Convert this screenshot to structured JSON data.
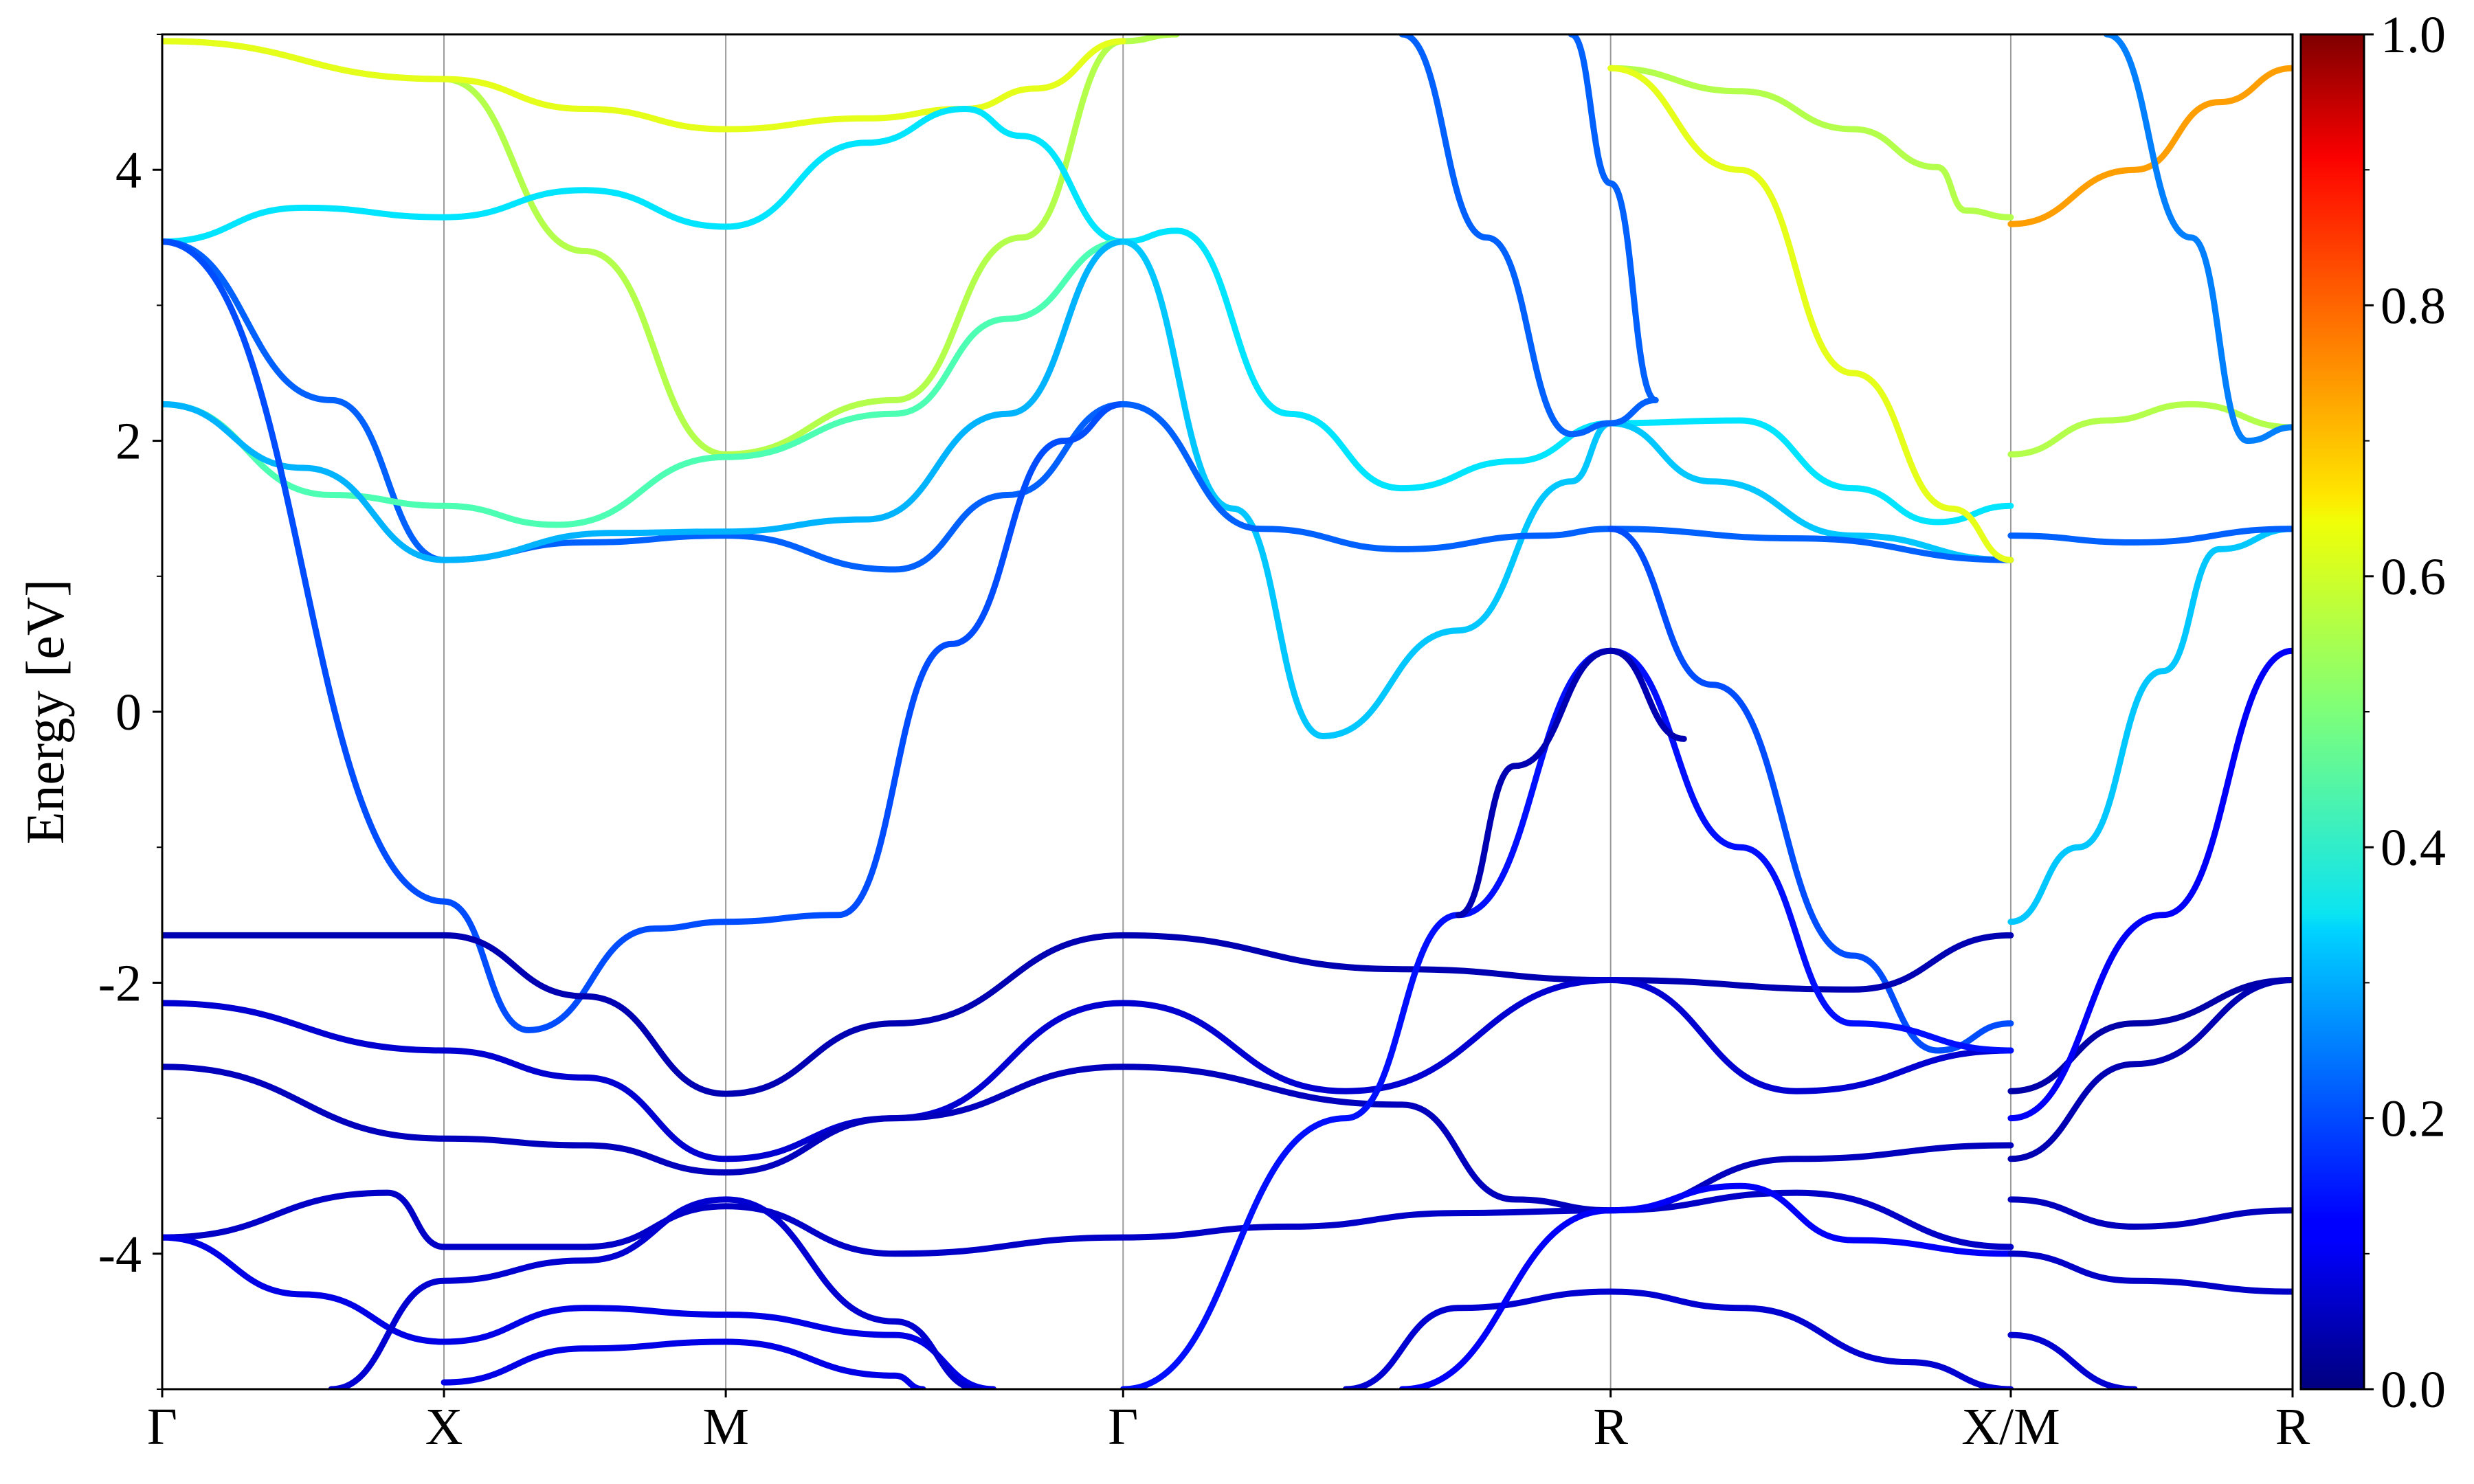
{
  "chart_data": {
    "type": "line",
    "ylabel": "Energy [eV]",
    "ylim": [
      -5,
      5
    ],
    "xlim": [
      0,
      7.56
    ],
    "y_ticks": [
      -4,
      -2,
      0,
      2,
      4
    ],
    "y_tick_labels": [
      "-4",
      "-2",
      "0",
      "2",
      "4"
    ],
    "k_points": [
      {
        "label": "Γ",
        "x": 0.0
      },
      {
        "label": "X",
        "x": 1.0
      },
      {
        "label": "M",
        "x": 2.0
      },
      {
        "label": "Γ",
        "x": 3.41
      },
      {
        "label": "R",
        "x": 5.14
      },
      {
        "label": "X/M",
        "x": 6.56
      },
      {
        "label": "R",
        "x": 7.56
      }
    ],
    "colorbar": {
      "colormap": "jet",
      "range": [
        0,
        1
      ],
      "tick_labels": [
        "0.0",
        "0.2",
        "0.4",
        "0.6",
        "0.8",
        "1.0"
      ],
      "ticks": [
        0,
        0.2,
        0.4,
        0.6,
        0.8,
        1.0
      ]
    },
    "series": [
      {
        "weight": 0.55,
        "points": [
          [
            0,
            4.95
          ],
          [
            1,
            4.67
          ],
          [
            1.5,
            3.4
          ],
          [
            2,
            1.9
          ],
          [
            2.6,
            2.3
          ],
          [
            3.05,
            3.5
          ],
          [
            3.41,
            4.95
          ],
          [
            3.6,
            5.0
          ]
        ]
      },
      {
        "weight": 0.6,
        "points": [
          [
            0,
            4.95
          ],
          [
            1,
            4.67
          ],
          [
            1.5,
            4.45
          ],
          [
            2,
            4.3
          ],
          [
            2.5,
            4.38
          ],
          [
            2.85,
            4.45
          ],
          [
            3.1,
            4.6
          ],
          [
            3.41,
            4.95
          ]
        ]
      },
      {
        "weight": 0.35,
        "points": [
          [
            0,
            3.47
          ],
          [
            0.5,
            3.72
          ],
          [
            1,
            3.65
          ],
          [
            1.5,
            3.85
          ],
          [
            2,
            3.58
          ],
          [
            2.5,
            4.2
          ],
          [
            2.85,
            4.45
          ],
          [
            3.05,
            4.25
          ],
          [
            3.41,
            3.47
          ]
        ]
      },
      {
        "weight": 0.22,
        "points": [
          [
            0,
            3.47
          ],
          [
            0.6,
            2.3
          ],
          [
            1,
            1.12
          ],
          [
            1.5,
            1.25
          ],
          [
            2,
            1.3
          ],
          [
            2.6,
            1.05
          ],
          [
            3.0,
            1.6
          ],
          [
            3.41,
            2.27
          ]
        ]
      },
      {
        "weight": 0.45,
        "points": [
          [
            0,
            2.27
          ],
          [
            0.6,
            1.6
          ],
          [
            1,
            1.52
          ],
          [
            1.4,
            1.38
          ],
          [
            2,
            1.88
          ],
          [
            2.6,
            2.2
          ],
          [
            3.0,
            2.9
          ],
          [
            3.41,
            3.47
          ]
        ]
      },
      {
        "weight": 0.3,
        "points": [
          [
            0,
            2.27
          ],
          [
            0.5,
            1.8
          ],
          [
            1,
            1.12
          ],
          [
            1.6,
            1.32
          ],
          [
            2,
            1.33
          ],
          [
            2.5,
            1.42
          ],
          [
            3.0,
            2.2
          ],
          [
            3.41,
            3.47
          ]
        ]
      },
      {
        "weight": 0.2,
        "points": [
          [
            0,
            3.47
          ],
          [
            1,
            -1.4
          ],
          [
            1.3,
            -2.35
          ],
          [
            1.75,
            -1.6
          ],
          [
            2,
            -1.55
          ],
          [
            2.4,
            -1.5
          ],
          [
            2.8,
            0.5
          ],
          [
            3.2,
            2.0
          ],
          [
            3.41,
            2.27
          ]
        ]
      },
      {
        "weight": 0.35,
        "points": [
          [
            3.41,
            3.47
          ],
          [
            3.6,
            3.55
          ],
          [
            4.0,
            2.2
          ],
          [
            4.4,
            1.65
          ],
          [
            4.8,
            1.85
          ],
          [
            5.14,
            2.13
          ],
          [
            5.6,
            2.15
          ],
          [
            6.0,
            1.65
          ],
          [
            6.3,
            1.4
          ],
          [
            6.56,
            1.52
          ]
        ]
      },
      {
        "weight": 0.32,
        "points": [
          [
            3.41,
            3.47
          ],
          [
            3.8,
            1.5
          ],
          [
            4.12,
            -0.18
          ],
          [
            4.6,
            0.6
          ],
          [
            5.0,
            1.7
          ],
          [
            5.14,
            2.13
          ],
          [
            5.5,
            1.7
          ],
          [
            6.0,
            1.3
          ],
          [
            6.56,
            1.12
          ]
        ]
      },
      {
        "weight": 0.22,
        "points": [
          [
            3.41,
            2.27
          ],
          [
            3.9,
            1.35
          ],
          [
            4.4,
            1.2
          ],
          [
            4.9,
            1.3
          ],
          [
            5.14,
            1.35
          ],
          [
            5.8,
            1.28
          ],
          [
            6.56,
            1.12
          ]
        ]
      },
      {
        "weight": 0.55,
        "points": [
          [
            5.14,
            4.75
          ],
          [
            5.6,
            4.58
          ],
          [
            6.0,
            4.3
          ],
          [
            6.3,
            4.02
          ],
          [
            6.4,
            3.7
          ],
          [
            6.56,
            3.65
          ]
        ]
      },
      {
        "weight": 0.6,
        "points": [
          [
            5.14,
            4.75
          ],
          [
            5.6,
            4.0
          ],
          [
            6.0,
            2.5
          ],
          [
            6.35,
            1.5
          ],
          [
            6.56,
            1.12
          ]
        ]
      },
      {
        "weight": 0.22,
        "points": [
          [
            5.0,
            5.0
          ],
          [
            5.14,
            3.9
          ],
          [
            5.3,
            2.3
          ],
          [
            5.14,
            2.13
          ],
          [
            5.0,
            2.05
          ],
          [
            4.7,
            3.5
          ],
          [
            4.4,
            5.0
          ]
        ]
      },
      {
        "weight": 0.2,
        "points": [
          [
            5.14,
            1.35
          ],
          [
            5.5,
            0.2
          ],
          [
            6.0,
            -1.8
          ],
          [
            6.3,
            -2.5
          ],
          [
            6.56,
            -2.3
          ]
        ]
      },
      {
        "weight": 0.05,
        "points": [
          [
            0,
            -1.65
          ],
          [
            1,
            -1.65
          ],
          [
            1.5,
            -2.1
          ],
          [
            2,
            -2.82
          ],
          [
            2.6,
            -2.3
          ],
          [
            3.41,
            -1.65
          ],
          [
            4.4,
            -1.9
          ],
          [
            5.14,
            -1.98
          ],
          [
            6.0,
            -2.05
          ],
          [
            6.56,
            -1.65
          ]
        ]
      },
      {
        "weight": 0.08,
        "points": [
          [
            0,
            -2.15
          ],
          [
            1,
            -2.5
          ],
          [
            1.5,
            -2.7
          ],
          [
            2,
            -3.3
          ],
          [
            2.6,
            -3.0
          ],
          [
            3.41,
            -2.15
          ],
          [
            4.2,
            -2.8
          ],
          [
            5.14,
            -1.98
          ],
          [
            5.8,
            -2.8
          ],
          [
            6.56,
            -2.5
          ]
        ]
      },
      {
        "weight": 0.06,
        "points": [
          [
            0,
            -2.62
          ],
          [
            1,
            -3.15
          ],
          [
            1.5,
            -3.2
          ],
          [
            2,
            -3.4
          ],
          [
            2.6,
            -3.0
          ],
          [
            3.41,
            -2.62
          ],
          [
            4.4,
            -2.9
          ],
          [
            4.8,
            -3.6
          ],
          [
            5.14,
            -3.68
          ],
          [
            5.8,
            -3.3
          ],
          [
            6.56,
            -3.2
          ]
        ]
      },
      {
        "weight": 0.07,
        "points": [
          [
            0,
            -3.88
          ],
          [
            0.8,
            -3.55
          ],
          [
            1,
            -3.95
          ],
          [
            1.5,
            -3.95
          ],
          [
            2,
            -3.65
          ],
          [
            2.6,
            -4.0
          ],
          [
            3.41,
            -3.88
          ],
          [
            4.0,
            -3.8
          ],
          [
            4.6,
            -3.7
          ],
          [
            5.14,
            -3.68
          ],
          [
            5.8,
            -3.55
          ],
          [
            6.56,
            -3.95
          ]
        ]
      },
      {
        "weight": 0.1,
        "points": [
          [
            0,
            -3.88
          ],
          [
            0.5,
            -4.3
          ],
          [
            1,
            -4.65
          ],
          [
            1.5,
            -4.4
          ],
          [
            2,
            -4.45
          ],
          [
            2.6,
            -4.6
          ],
          [
            2.95,
            -5.0
          ]
        ]
      },
      {
        "weight": 0.08,
        "points": [
          [
            0.6,
            -5.0
          ],
          [
            1,
            -4.2
          ],
          [
            1.5,
            -4.05
          ],
          [
            2,
            -3.6
          ],
          [
            2.6,
            -4.5
          ],
          [
            2.9,
            -5.0
          ]
        ]
      },
      {
        "weight": 0.1,
        "points": [
          [
            1.0,
            -4.95
          ],
          [
            1.5,
            -4.7
          ],
          [
            2,
            -4.65
          ],
          [
            2.6,
            -4.9
          ],
          [
            2.7,
            -5.0
          ]
        ]
      },
      {
        "weight": 0.08,
        "points": [
          [
            4.2,
            -5.0
          ],
          [
            4.6,
            -4.4
          ],
          [
            5.14,
            -4.28
          ],
          [
            5.6,
            -4.4
          ],
          [
            6.2,
            -4.8
          ],
          [
            6.56,
            -5.0
          ]
        ]
      },
      {
        "weight": 0.12,
        "points": [
          [
            4.4,
            -5.0
          ],
          [
            5.14,
            -3.68
          ],
          [
            5.6,
            -3.5
          ],
          [
            6.0,
            -3.9
          ],
          [
            6.56,
            -4.0
          ]
        ]
      },
      {
        "weight": 0.14,
        "points": [
          [
            3.41,
            -5.0
          ],
          [
            4.2,
            -3.0
          ],
          [
            4.6,
            -1.5
          ],
          [
            5.14,
            0.45
          ],
          [
            5.6,
            -1.0
          ],
          [
            6.0,
            -2.3
          ],
          [
            6.56,
            -2.5
          ]
        ]
      },
      {
        "weight": 0.05,
        "points": [
          [
            4.6,
            -1.5
          ],
          [
            4.8,
            -0.4
          ],
          [
            5.14,
            0.45
          ],
          [
            5.4,
            -0.2
          ]
        ]
      },
      {
        "weight": 0.32,
        "points": [
          [
            6.56,
            -1.55
          ],
          [
            6.8,
            -1.0
          ],
          [
            7.1,
            0.3
          ],
          [
            7.3,
            1.2
          ],
          [
            7.56,
            1.35
          ]
        ]
      },
      {
        "weight": 0.55,
        "points": [
          [
            6.56,
            1.9
          ],
          [
            6.9,
            2.15
          ],
          [
            7.2,
            2.27
          ],
          [
            7.56,
            2.1
          ]
        ]
      },
      {
        "weight": 0.22,
        "points": [
          [
            6.56,
            1.3
          ],
          [
            7.0,
            1.25
          ],
          [
            7.56,
            1.35
          ]
        ]
      },
      {
        "weight": 0.72,
        "points": [
          [
            6.56,
            3.6
          ],
          [
            7.0,
            4.0
          ],
          [
            7.3,
            4.5
          ],
          [
            7.56,
            4.75
          ]
        ]
      },
      {
        "weight": 0.25,
        "points": [
          [
            6.9,
            5.0
          ],
          [
            7.2,
            3.5
          ],
          [
            7.4,
            2.0
          ],
          [
            7.56,
            2.1
          ]
        ]
      },
      {
        "weight": 0.04,
        "points": [
          [
            6.56,
            -2.8
          ],
          [
            7.0,
            -2.3
          ],
          [
            7.56,
            -1.98
          ]
        ]
      },
      {
        "weight": 0.05,
        "points": [
          [
            6.56,
            -3.3
          ],
          [
            7.0,
            -2.6
          ],
          [
            7.56,
            -1.98
          ]
        ]
      },
      {
        "weight": 0.06,
        "points": [
          [
            6.56,
            -3.6
          ],
          [
            7.0,
            -3.8
          ],
          [
            7.56,
            -3.68
          ]
        ]
      },
      {
        "weight": 0.07,
        "points": [
          [
            6.56,
            -4.0
          ],
          [
            7.0,
            -4.2
          ],
          [
            7.56,
            -4.28
          ]
        ]
      },
      {
        "weight": 0.12,
        "points": [
          [
            6.56,
            -3.0
          ],
          [
            7.1,
            -1.5
          ],
          [
            7.56,
            0.45
          ]
        ]
      },
      {
        "weight": 0.08,
        "points": [
          [
            6.56,
            -4.6
          ],
          [
            7.0,
            -5.0
          ]
        ]
      }
    ]
  }
}
